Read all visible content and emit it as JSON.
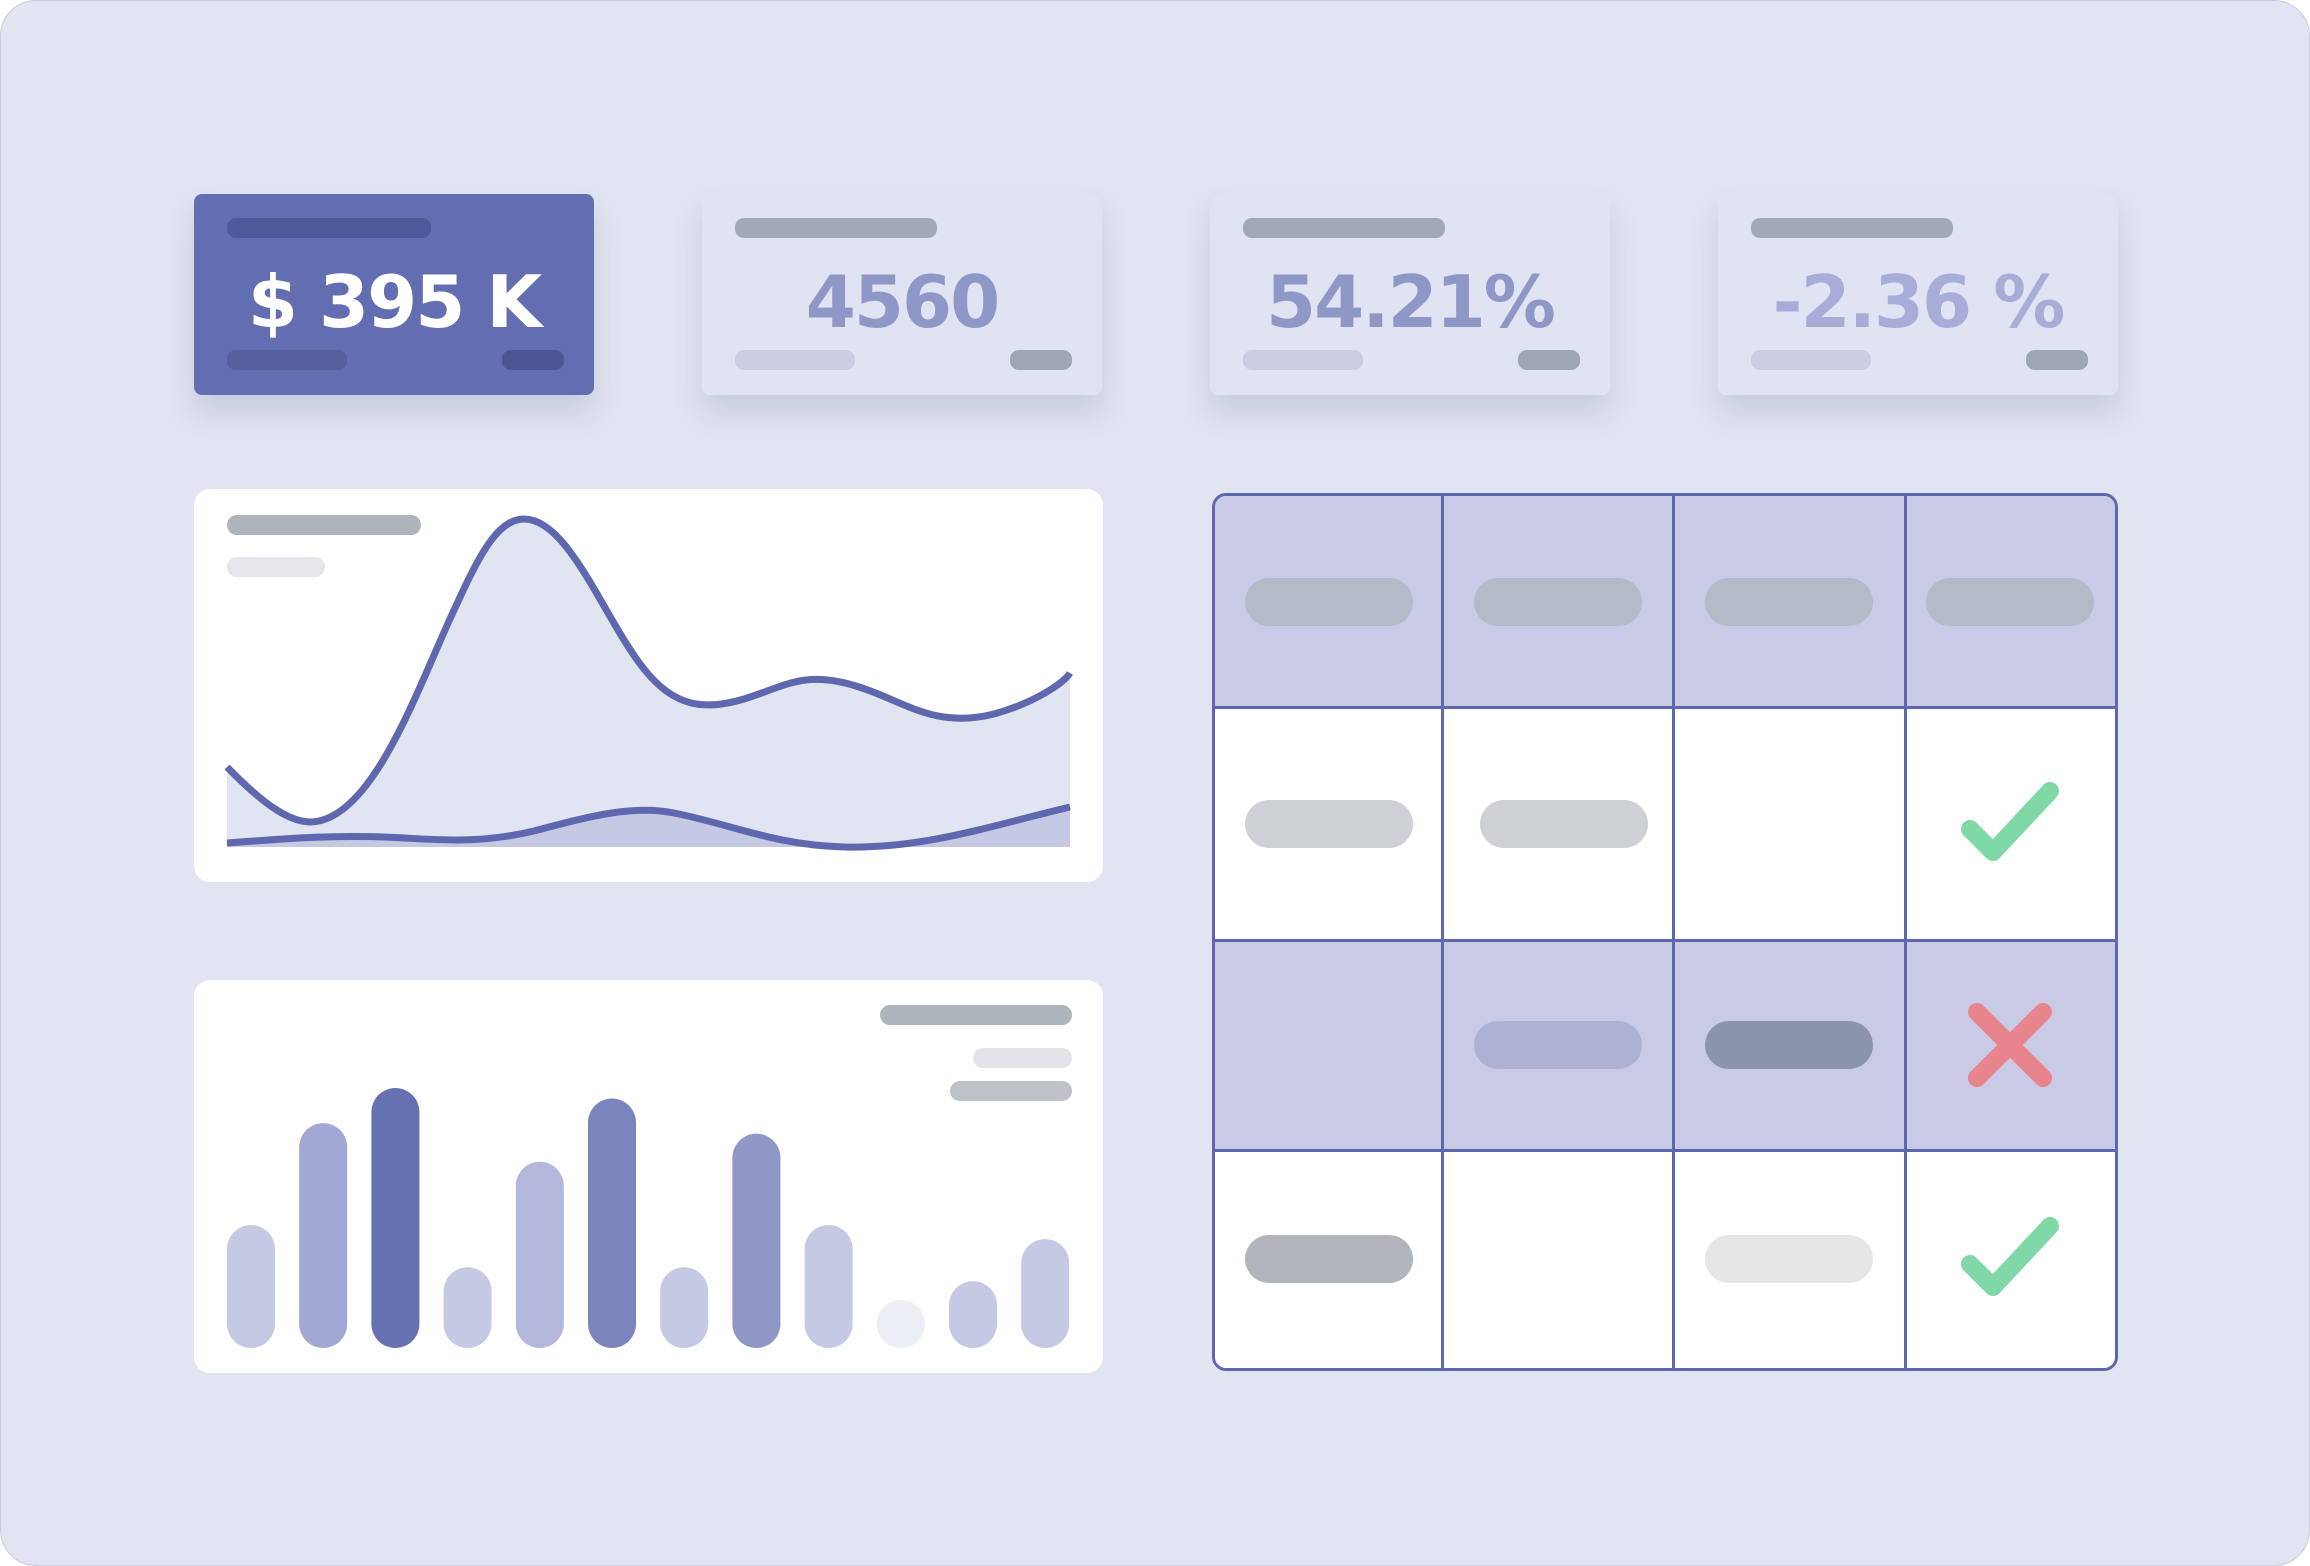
{
  "kpis": [
    {
      "value": "$ 395 K",
      "variant": "primary",
      "text_color": "#ffffff"
    },
    {
      "value": "4560",
      "variant": "light",
      "text_color": "#8f97c7"
    },
    {
      "value": "54.21%",
      "variant": "light",
      "text_color": "#8f97c7"
    },
    {
      "value": "-2.36 %",
      "variant": "light",
      "text_color": "#a8add8"
    }
  ],
  "line_chart": {
    "series": [
      {
        "name": "",
        "color": "#5f68ae"
      },
      {
        "name": "",
        "color": "#5f68ae"
      }
    ]
  },
  "bar_chart": {
    "values": [
      0.35,
      0.64,
      0.74,
      0.23,
      0.53,
      0.71,
      0.23,
      0.61,
      0.35,
      0.02,
      0.19,
      0.31
    ],
    "colors": [
      "#c6c9e4",
      "#a2a8d3",
      "#6671b2",
      "#c6c9e4",
      "#b4b7dc",
      "#7c84be",
      "#c6c9e4",
      "#8f97c7",
      "#c6c9e4",
      "#eceef6",
      "#c6c9e4",
      "#c6c9e4"
    ]
  },
  "table": {
    "columns": 4,
    "rows": [
      {
        "shade": "header",
        "cells": [
          "placeholder",
          "placeholder",
          "placeholder",
          "placeholder"
        ]
      },
      {
        "shade": "white",
        "cells": [
          "placeholder",
          "placeholder",
          "empty",
          "check-icon"
        ]
      },
      {
        "shade": "tinted",
        "cells": [
          "empty",
          "placeholder",
          "placeholder-dark",
          "x-icon"
        ]
      },
      {
        "shade": "white",
        "cells": [
          "placeholder",
          "empty",
          "placeholder-light",
          "check-icon"
        ]
      }
    ],
    "status_colors": {
      "check": "#80d8a6",
      "x": "#e8848c"
    }
  },
  "colors": {
    "background": "#e1e4f1",
    "accent": "#636db2",
    "table_header": "#c8cae6"
  }
}
